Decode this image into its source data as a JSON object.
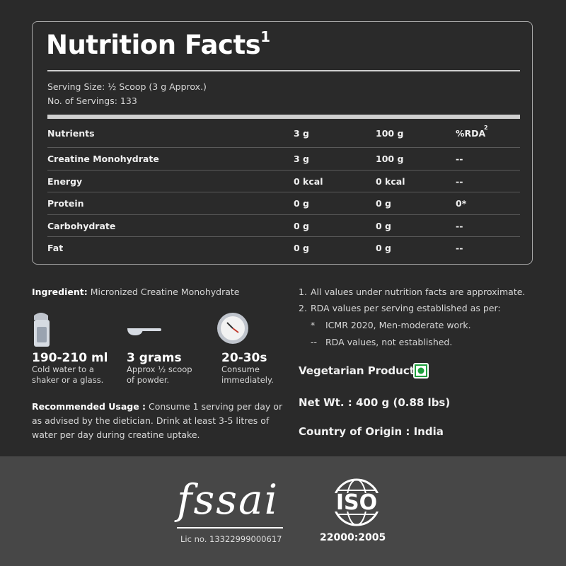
{
  "header": {
    "title": "Nutrition Facts",
    "title_note": "1"
  },
  "serving": {
    "size": "Serving Size: ½ Scoop (3 g Approx.)",
    "count": "No. of Servings: 133"
  },
  "table": {
    "header": [
      "Nutrients",
      "3 g",
      "100 g",
      "%RDA"
    ],
    "header_note": "2",
    "rows": [
      [
        "Creatine Monohydrate",
        "3 g",
        "100 g",
        "--"
      ],
      [
        "Energy",
        "0 kcal",
        "0 kcal",
        "--"
      ],
      [
        "Protein",
        "0 g",
        "0 g",
        "0*"
      ],
      [
        "Carbohydrate",
        "0 g",
        "0 g",
        "--"
      ],
      [
        "Fat",
        "0 g",
        "0 g",
        "--"
      ]
    ]
  },
  "ingredient": {
    "label": "Ingredient:",
    "text": "Micronized Creatine Monohydrate"
  },
  "steps": [
    {
      "value": "190-210 ml",
      "text": "Cold water to a shaker or a glass."
    },
    {
      "value": "3 grams",
      "text": "Approx ½ scoop of powder."
    },
    {
      "value": "20-30s",
      "text": "Consume immediately."
    }
  ],
  "usage": {
    "label": "Recommended Usage :",
    "text": "Consume 1 serving per day or as advised by the dietician. Drink at least 3-5 litres of water per day during creatine uptake."
  },
  "notes": [
    {
      "marker": "1.",
      "text": "All values under nutrition facts are approximate."
    },
    {
      "marker": "2.",
      "text": "RDA values per serving established as per:"
    }
  ],
  "subnotes": [
    {
      "marker": "*",
      "text": "ICMR 2020, Men-moderate work."
    },
    {
      "marker": "--",
      "text": "RDA values, not established."
    }
  ],
  "info": {
    "vegetarian": "Vegetarian Product",
    "net_weight": "Net Wt. : 400 g (0.88 lbs)",
    "origin": "Country of Origin : India"
  },
  "footer": {
    "fssai": "fssai",
    "license": "Lic no. 13322999000617",
    "iso": "ISO",
    "iso_code": "22000:2005"
  }
}
